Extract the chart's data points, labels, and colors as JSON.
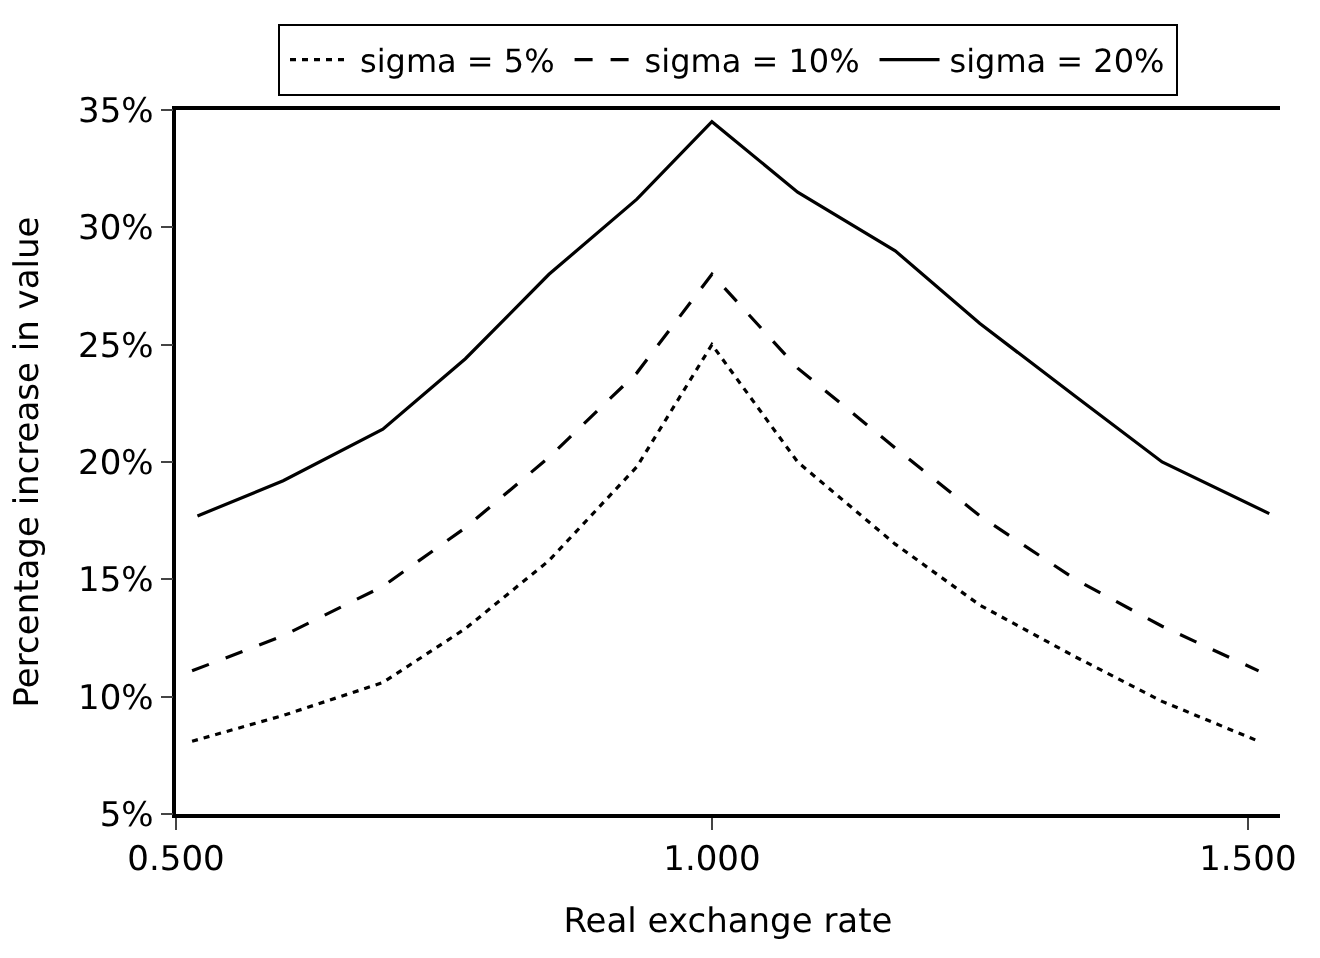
{
  "chart_data": {
    "type": "line",
    "xlabel": "Real exchange rate",
    "ylabel": "Percentage increase in value",
    "xlim": [
      0.5,
      1.53
    ],
    "xticks": [
      {
        "value": 0.5,
        "label": "0.500"
      },
      {
        "value": 1.0,
        "label": "1.000"
      },
      {
        "value": 1.5,
        "label": "1.500"
      }
    ],
    "ylim": [
      5,
      35
    ],
    "yticks": [
      {
        "value": 5,
        "label": "5%"
      },
      {
        "value": 10,
        "label": "10%"
      },
      {
        "value": 15,
        "label": "15%"
      },
      {
        "value": 20,
        "label": "20%"
      },
      {
        "value": 25,
        "label": "25%"
      },
      {
        "value": 30,
        "label": "30%"
      },
      {
        "value": 35,
        "label": "35%"
      }
    ],
    "legend": "top",
    "marker": "none",
    "series": [
      {
        "name": "sigma = 5%",
        "color": "#000000",
        "line_style": "dotted",
        "x": [
          0.515,
          0.6,
          0.693,
          0.77,
          0.848,
          0.93,
          1.0,
          1.08,
          1.171,
          1.25,
          1.339,
          1.42,
          1.51
        ],
        "values": [
          8.1,
          9.2,
          10.6,
          12.9,
          15.8,
          19.8,
          25.0,
          20.0,
          16.5,
          13.9,
          11.7,
          9.8,
          8.1
        ]
      },
      {
        "name": "sigma = 10%",
        "color": "#000000",
        "line_style": "dashed",
        "x": [
          0.515,
          0.6,
          0.693,
          0.77,
          0.848,
          0.93,
          1.0,
          1.08,
          1.171,
          1.25,
          1.339,
          1.42,
          1.51
        ],
        "values": [
          11.1,
          12.6,
          14.7,
          17.2,
          20.2,
          23.8,
          28.0,
          24.0,
          20.6,
          17.7,
          15.0,
          13.0,
          11.1
        ]
      },
      {
        "name": "sigma = 20%",
        "color": "#000000",
        "line_style": "solid",
        "x": [
          0.52,
          0.6,
          0.693,
          0.77,
          0.848,
          0.93,
          1.0,
          1.08,
          1.171,
          1.25,
          1.339,
          1.42,
          1.52
        ],
        "values": [
          17.7,
          19.2,
          21.4,
          24.4,
          28.0,
          31.2,
          34.5,
          31.5,
          29.0,
          25.9,
          22.8,
          20.0,
          17.8
        ]
      }
    ]
  }
}
